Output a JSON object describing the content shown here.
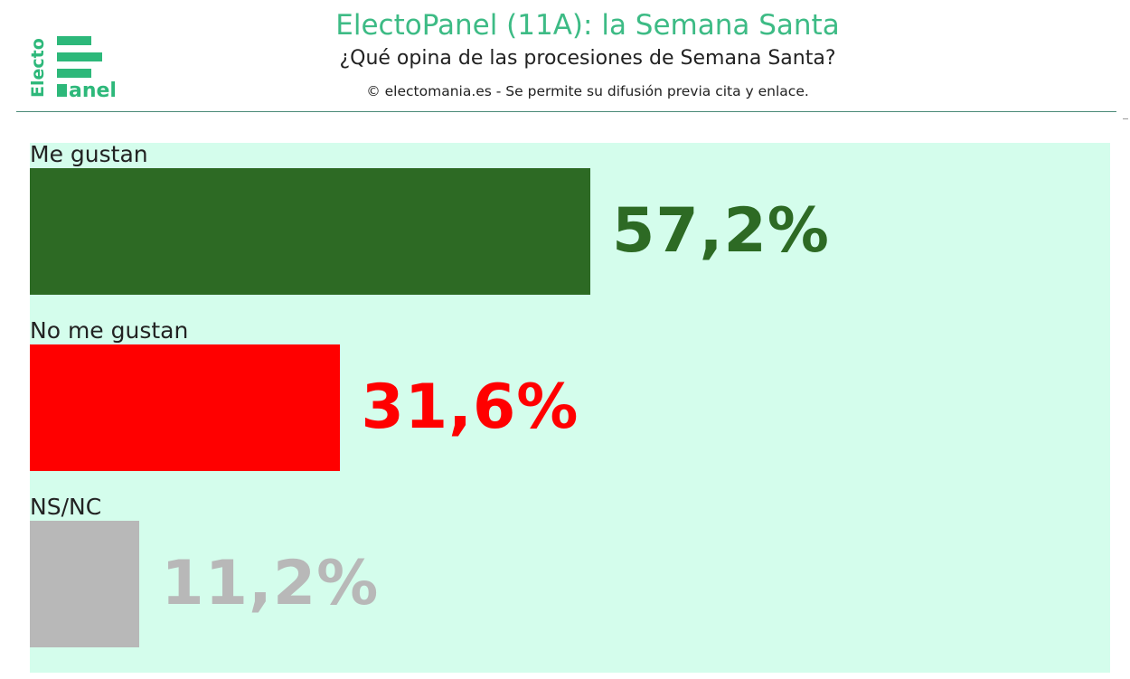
{
  "header": {
    "title": "ElectoPanel (11A): la Semana Santa",
    "subtitle": "¿Qué opina de las procesiones de Semana Santa?",
    "credit": "© electomania.es - Se permite su difusión previa cita y enlace."
  },
  "logo": {
    "vertical_text": "Electo",
    "horizontal_text": "anel",
    "color": "#2db87a"
  },
  "colors": {
    "background": "#d4fdec",
    "title": "#3dbb85"
  },
  "chart_data": {
    "type": "bar",
    "orientation": "horizontal",
    "categories": [
      "Me gustan",
      "No me gustan",
      "NS/NC"
    ],
    "values": [
      57.2,
      31.6,
      11.2
    ],
    "value_labels": [
      "57,2%",
      "31,6%",
      "11,2%"
    ],
    "colors": [
      "#2d6a24",
      "#ff0000",
      "#b8b8b8"
    ],
    "xlim": [
      0,
      100
    ],
    "grid": false,
    "title": "ElectoPanel (11A): la Semana Santa",
    "xlabel": "",
    "ylabel": ""
  }
}
